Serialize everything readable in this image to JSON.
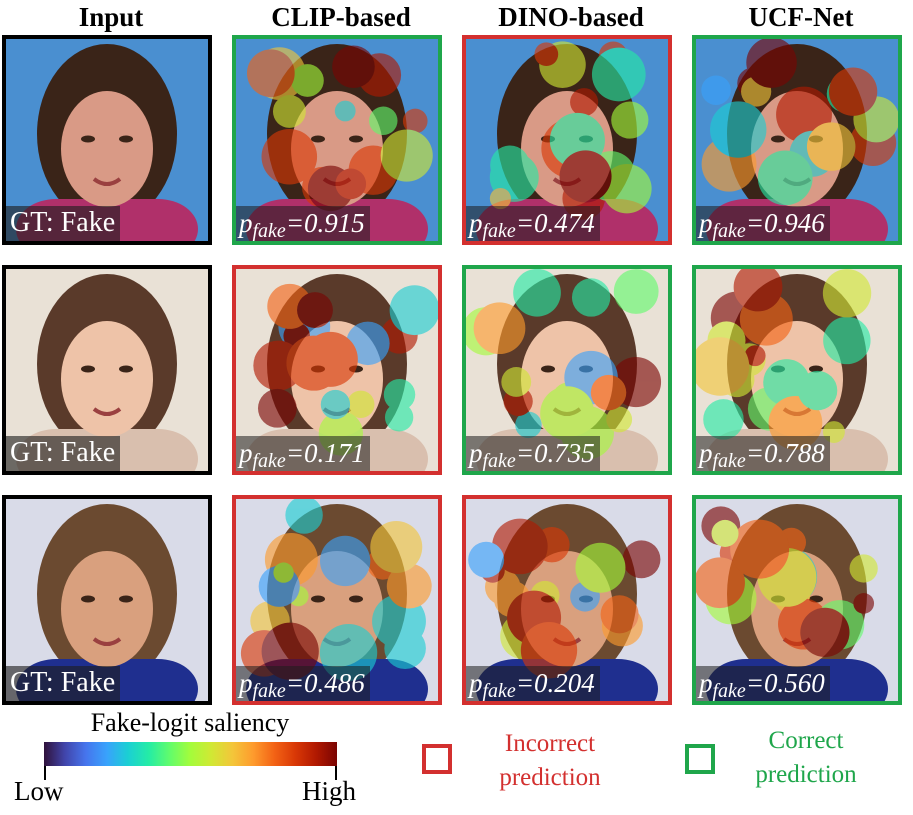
{
  "columns": [
    "Input",
    "CLIP-based",
    "DINO-based",
    "UCF-Net"
  ],
  "rows": [
    {
      "gt_label": "GT: Fake",
      "predictions": [
        {
          "model": "CLIP-based",
          "prefix": "p",
          "sub": "fake",
          "value": "=0.915",
          "correct": true
        },
        {
          "model": "DINO-based",
          "prefix": "p",
          "sub": "fake",
          "value": "=0.474",
          "correct": false
        },
        {
          "model": "UCF-Net",
          "prefix": "p",
          "sub": "fake",
          "value": "=0.946",
          "correct": true
        }
      ]
    },
    {
      "gt_label": "GT: Fake",
      "predictions": [
        {
          "model": "CLIP-based",
          "prefix": "p",
          "sub": "fake",
          "value": "=0.171",
          "correct": false
        },
        {
          "model": "DINO-based",
          "prefix": "p",
          "sub": "fake",
          "value": "=0.735",
          "correct": true
        },
        {
          "model": "UCF-Net",
          "prefix": "p",
          "sub": "fake",
          "value": "=0.788",
          "correct": true
        }
      ]
    },
    {
      "gt_label": "GT: Fake",
      "predictions": [
        {
          "model": "CLIP-based",
          "prefix": "p",
          "sub": "fake",
          "value": "=0.486",
          "correct": false
        },
        {
          "model": "DINO-based",
          "prefix": "p",
          "sub": "fake",
          "value": "=0.204",
          "correct": false
        },
        {
          "model": "UCF-Net",
          "prefix": "p",
          "sub": "fake",
          "value": "=0.560",
          "correct": true
        }
      ]
    }
  ],
  "legend": {
    "title": "Fake-logit saliency",
    "low": "Low",
    "high": "High",
    "incorrect": [
      "Incorrect",
      "prediction"
    ],
    "correct": [
      "Correct",
      "prediction"
    ]
  },
  "colors": {
    "correct": "#1fa64b",
    "incorrect": "#d3302f",
    "input_border": "#000000",
    "colormap": [
      "#30123b",
      "#4145ab",
      "#4675ed",
      "#39a2fc",
      "#1bcfd4",
      "#24eca6",
      "#61fc6c",
      "#a4fc3b",
      "#d1e834",
      "#f3c63a",
      "#fe9b2d",
      "#f36315",
      "#d93806",
      "#b11901",
      "#7a0402"
    ]
  }
}
